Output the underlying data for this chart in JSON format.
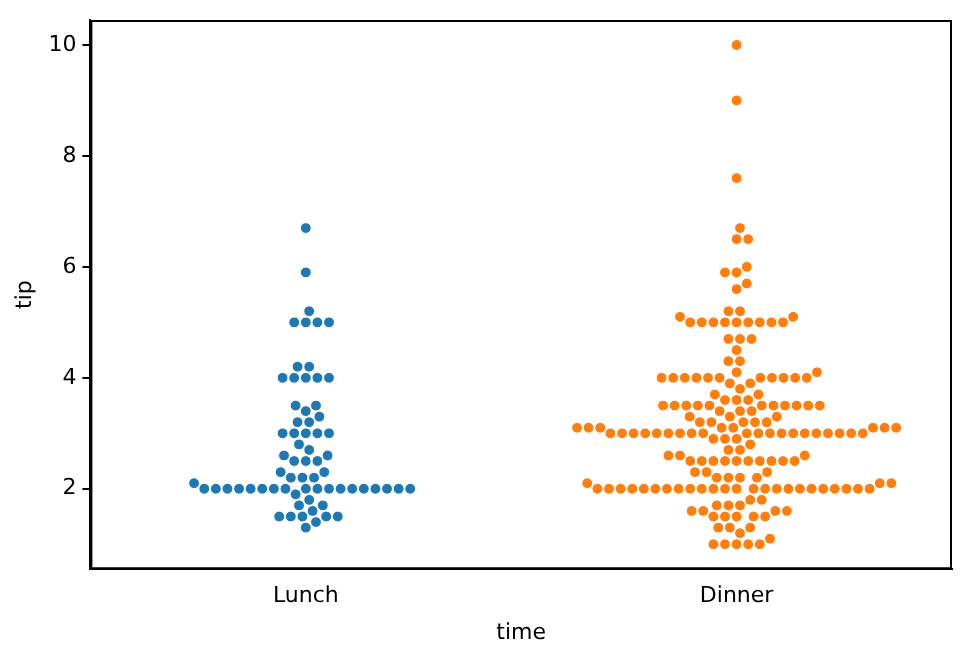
{
  "chart_data": {
    "type": "scatter",
    "xlabel": "time",
    "ylabel": "tip",
    "categories": [
      "Lunch",
      "Dinner"
    ],
    "ylim": [
      0.55,
      10.45
    ],
    "yticks": [
      2,
      4,
      6,
      8,
      10
    ],
    "grid": false,
    "legend": false,
    "marker": "circle",
    "series": [
      {
        "color": "#1f77b4",
        "x": [
          "Lunch",
          "Lunch",
          "Lunch",
          "Lunch",
          "Lunch",
          "Lunch",
          "Lunch",
          "Lunch",
          "Lunch",
          "Lunch",
          "Lunch",
          "Lunch",
          "Lunch",
          "Lunch",
          "Lunch",
          "Lunch",
          "Lunch",
          "Lunch",
          "Lunch",
          "Lunch",
          "Lunch",
          "Lunch",
          "Lunch",
          "Lunch",
          "Lunch",
          "Lunch",
          "Lunch",
          "Lunch",
          "Lunch",
          "Lunch",
          "Lunch",
          "Lunch",
          "Lunch",
          "Lunch",
          "Lunch",
          "Lunch",
          "Lunch",
          "Lunch",
          "Lunch",
          "Lunch",
          "Lunch",
          "Lunch",
          "Lunch",
          "Lunch",
          "Lunch",
          "Lunch",
          "Lunch",
          "Lunch",
          "Lunch",
          "Lunch",
          "Lunch",
          "Lunch",
          "Lunch",
          "Lunch",
          "Lunch",
          "Lunch",
          "Lunch",
          "Lunch",
          "Lunch",
          "Lunch",
          "Lunch",
          "Lunch",
          "Lunch",
          "Lunch",
          "Lunch",
          "Lunch",
          "Lunch",
          "Lunch"
        ],
        "values": [
          6.7,
          5.9,
          5.2,
          5,
          5,
          5,
          5,
          4.2,
          4.2,
          4,
          4,
          4,
          4,
          4,
          3.5,
          3.5,
          3.4,
          3.3,
          3.2,
          3.2,
          3,
          3,
          3,
          3,
          3,
          2.8,
          2.7,
          2.6,
          2.6,
          2.5,
          2.5,
          2.5,
          2.3,
          2.3,
          2.2,
          2.2,
          2.2,
          2.1,
          2,
          2,
          2,
          2,
          2,
          2,
          2,
          2,
          2,
          2,
          2,
          2,
          2,
          2,
          2,
          2,
          2,
          2,
          1.9,
          1.8,
          1.7,
          1.7,
          1.6,
          1.5,
          1.5,
          1.5,
          1.5,
          1.5,
          1.4,
          1.3
        ]
      },
      {
        "color": "#ff7f0e",
        "x": [
          "Dinner",
          "Dinner",
          "Dinner",
          "Dinner",
          "Dinner",
          "Dinner",
          "Dinner",
          "Dinner",
          "Dinner",
          "Dinner",
          "Dinner",
          "Dinner",
          "Dinner",
          "Dinner",
          "Dinner",
          "Dinner",
          "Dinner",
          "Dinner",
          "Dinner",
          "Dinner",
          "Dinner",
          "Dinner",
          "Dinner",
          "Dinner",
          "Dinner",
          "Dinner",
          "Dinner",
          "Dinner",
          "Dinner",
          "Dinner",
          "Dinner",
          "Dinner",
          "Dinner",
          "Dinner",
          "Dinner",
          "Dinner",
          "Dinner",
          "Dinner",
          "Dinner",
          "Dinner",
          "Dinner",
          "Dinner",
          "Dinner",
          "Dinner",
          "Dinner",
          "Dinner",
          "Dinner",
          "Dinner",
          "Dinner",
          "Dinner",
          "Dinner",
          "Dinner",
          "Dinner",
          "Dinner",
          "Dinner",
          "Dinner",
          "Dinner",
          "Dinner",
          "Dinner",
          "Dinner",
          "Dinner",
          "Dinner",
          "Dinner",
          "Dinner",
          "Dinner",
          "Dinner",
          "Dinner",
          "Dinner",
          "Dinner",
          "Dinner",
          "Dinner",
          "Dinner",
          "Dinner",
          "Dinner",
          "Dinner",
          "Dinner",
          "Dinner",
          "Dinner",
          "Dinner",
          "Dinner",
          "Dinner",
          "Dinner",
          "Dinner",
          "Dinner",
          "Dinner",
          "Dinner",
          "Dinner",
          "Dinner",
          "Dinner",
          "Dinner",
          "Dinner",
          "Dinner",
          "Dinner",
          "Dinner",
          "Dinner",
          "Dinner",
          "Dinner",
          "Dinner",
          "Dinner",
          "Dinner",
          "Dinner",
          "Dinner",
          "Dinner",
          "Dinner",
          "Dinner",
          "Dinner",
          "Dinner",
          "Dinner",
          "Dinner",
          "Dinner",
          "Dinner",
          "Dinner",
          "Dinner",
          "Dinner",
          "Dinner",
          "Dinner",
          "Dinner",
          "Dinner",
          "Dinner",
          "Dinner",
          "Dinner",
          "Dinner",
          "Dinner",
          "Dinner",
          "Dinner",
          "Dinner",
          "Dinner",
          "Dinner",
          "Dinner",
          "Dinner",
          "Dinner",
          "Dinner",
          "Dinner",
          "Dinner",
          "Dinner",
          "Dinner",
          "Dinner",
          "Dinner",
          "Dinner",
          "Dinner",
          "Dinner",
          "Dinner",
          "Dinner",
          "Dinner",
          "Dinner",
          "Dinner",
          "Dinner",
          "Dinner",
          "Dinner",
          "Dinner",
          "Dinner",
          "Dinner",
          "Dinner",
          "Dinner",
          "Dinner",
          "Dinner",
          "Dinner",
          "Dinner",
          "Dinner",
          "Dinner",
          "Dinner",
          "Dinner",
          "Dinner",
          "Dinner",
          "Dinner",
          "Dinner",
          "Dinner",
          "Dinner",
          "Dinner",
          "Dinner",
          "Dinner",
          "Dinner",
          "Dinner",
          "Dinner",
          "Dinner",
          "Dinner",
          "Dinner",
          "Dinner"
        ],
        "values": [
          10,
          9,
          7.6,
          6.7,
          6.5,
          6.5,
          6,
          5.9,
          5.9,
          5.7,
          5.6,
          5.2,
          5.2,
          5.1,
          5.1,
          5,
          5,
          5,
          5,
          5,
          5,
          5,
          5,
          5,
          4.7,
          4.7,
          4.7,
          4.5,
          4.3,
          4.3,
          4.1,
          4.1,
          4,
          4,
          4,
          4,
          4,
          4,
          4,
          4,
          4,
          4,
          4,
          3.9,
          3.9,
          3.8,
          3.7,
          3.7,
          3.6,
          3.6,
          3.6,
          3.5,
          3.5,
          3.5,
          3.5,
          3.5,
          3.5,
          3.5,
          3.5,
          3.5,
          3.5,
          3.5,
          3.4,
          3.4,
          3.4,
          3.3,
          3.3,
          3.3,
          3.2,
          3.2,
          3.2,
          3.2,
          3.2,
          3.1,
          3.1,
          3.1,
          3.1,
          3.1,
          3.1,
          3.1,
          3.1,
          3,
          3,
          3,
          3,
          3,
          3,
          3,
          3,
          3,
          3,
          3,
          3,
          3,
          3,
          3,
          3,
          3,
          3,
          3,
          3,
          2.9,
          2.9,
          2.9,
          2.8,
          2.7,
          2.7,
          2.6,
          2.6,
          2.6,
          2.5,
          2.5,
          2.5,
          2.5,
          2.5,
          2.5,
          2.5,
          2.5,
          2.5,
          2.5,
          2.3,
          2.3,
          2.3,
          2.2,
          2.2,
          2.2,
          2.2,
          2.1,
          2.1,
          2.1,
          2,
          2,
          2,
          2,
          2,
          2,
          2,
          2,
          2,
          2,
          2,
          2,
          2,
          2,
          2,
          2,
          2,
          2,
          2,
          2,
          2,
          2,
          2,
          2,
          1.8,
          1.8,
          1.7,
          1.7,
          1.7,
          1.6,
          1.6,
          1.6,
          1.6,
          1.5,
          1.5,
          1.5,
          1.5,
          1.5,
          1.3,
          1.3,
          1.3,
          1.2,
          1.1,
          1,
          1,
          1,
          1,
          1
        ]
      }
    ]
  }
}
